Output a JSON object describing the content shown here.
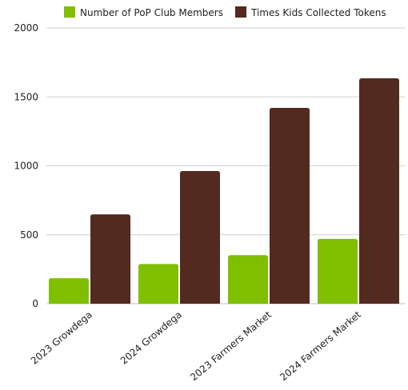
{
  "chart_data": {
    "type": "bar",
    "categories": [
      "2023 Growdega",
      "2024 Growdega",
      "2023 Farmers Market",
      "2024 Farmers Market"
    ],
    "series": [
      {
        "name": "Number of PoP Club Members",
        "values": [
          185,
          288,
          352,
          470
        ],
        "color": "#7fbf00"
      },
      {
        "name": "Times Kids Collected Tokens",
        "values": [
          648,
          962,
          1420,
          1635
        ],
        "color": "#532a1f"
      }
    ],
    "ylim": [
      0,
      2000
    ],
    "yticks": [
      0,
      500,
      1000,
      1500,
      2000
    ],
    "grid": true,
    "legend_position": "top",
    "xlabel": "",
    "ylabel": "",
    "title": ""
  }
}
